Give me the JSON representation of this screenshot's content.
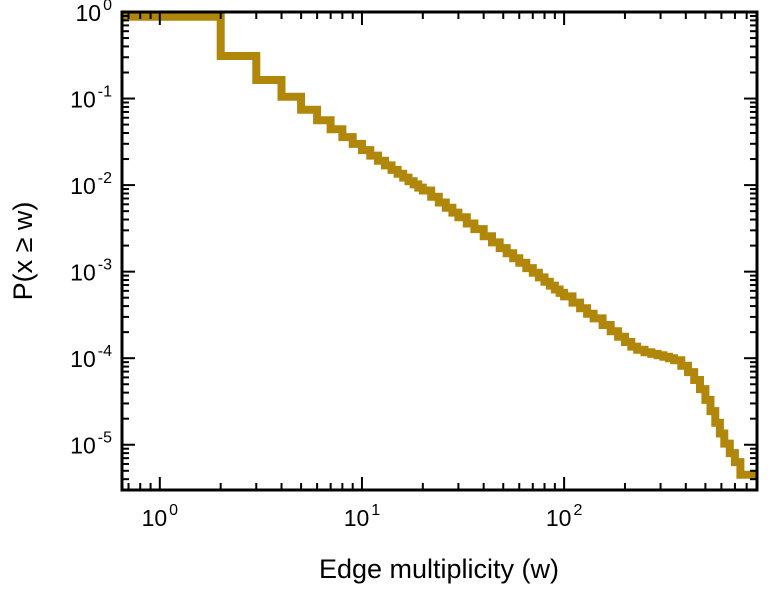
{
  "colors": {
    "line": "#B1870B",
    "axis": "#000000",
    "background": "#FFFFFF"
  },
  "chart_data": {
    "type": "line",
    "subtype": "ccdf-step",
    "title": "",
    "xlabel": "Edge multiplicity (w)",
    "ylabel": "P(x ≥ w)",
    "x_scale": "log",
    "y_scale": "log",
    "grid": false,
    "legend": null,
    "xlim": [
      0.65,
      900
    ],
    "ylim": [
      3e-06,
      1.0
    ],
    "tick_base": "10",
    "x_major_ticks": [
      {
        "value": 1,
        "exp": "0"
      },
      {
        "value": 10,
        "exp": "1"
      },
      {
        "value": 100,
        "exp": "2"
      }
    ],
    "y_major_ticks": [
      {
        "value": 1,
        "exp": "0"
      },
      {
        "value": 0.1,
        "exp": "-1"
      },
      {
        "value": 0.01,
        "exp": "-2"
      },
      {
        "value": 0.001,
        "exp": "-3"
      },
      {
        "value": 0.0001,
        "exp": "-4"
      },
      {
        "value": 1e-05,
        "exp": "-5"
      }
    ],
    "points": [
      [
        1,
        0.88
      ],
      [
        2,
        0.31
      ],
      [
        3,
        0.164
      ],
      [
        4,
        0.105
      ],
      [
        5,
        0.0743
      ],
      [
        6,
        0.0561
      ],
      [
        7,
        0.0442
      ],
      [
        8,
        0.0359
      ],
      [
        9,
        0.0299
      ],
      [
        10,
        0.0254
      ],
      [
        11,
        0.0219
      ],
      [
        12,
        0.0191
      ],
      [
        13,
        0.0169
      ],
      [
        14,
        0.015
      ],
      [
        15,
        0.0135
      ],
      [
        16,
        0.0122
      ],
      [
        17,
        0.0111
      ],
      [
        18,
        0.0102
      ],
      [
        19,
        0.00935
      ],
      [
        20,
        0.00866
      ],
      [
        22,
        0.00733
      ],
      [
        24,
        0.0063
      ],
      [
        26,
        0.00547
      ],
      [
        28,
        0.00481
      ],
      [
        30,
        0.00426
      ],
      [
        33,
        0.0036
      ],
      [
        36,
        0.0031
      ],
      [
        40,
        0.00257
      ],
      [
        44,
        0.00218
      ],
      [
        48,
        0.00187
      ],
      [
        52,
        0.00163
      ],
      [
        56,
        0.00143
      ],
      [
        60,
        0.00127
      ],
      [
        65,
        0.0011
      ],
      [
        70,
        0.000969
      ],
      [
        75,
        0.000859
      ],
      [
        80,
        0.000766
      ],
      [
        85,
        0.000689
      ],
      [
        90,
        0.000622
      ],
      [
        95,
        0.000568
      ],
      [
        100,
        0.000518
      ],
      [
        110,
        0.000439
      ],
      [
        120,
        0.000377
      ],
      [
        130,
        0.000327
      ],
      [
        140,
        0.000288
      ],
      [
        155,
        0.000242
      ],
      [
        170,
        0.000205
      ],
      [
        185,
        0.000177
      ],
      [
        200,
        0.000154
      ],
      [
        215,
        0.000136
      ],
      [
        230,
        0.000125
      ],
      [
        250,
        0.000117
      ],
      [
        270,
        0.000112
      ],
      [
        290,
        0.000108
      ],
      [
        310,
        0.000104
      ],
      [
        330,
        0.0001
      ],
      [
        350,
        9.45e-05
      ],
      [
        380,
        8.2e-05
      ],
      [
        410,
        6.9e-05
      ],
      [
        440,
        5.6e-05
      ],
      [
        470,
        4.4e-05
      ],
      [
        500,
        3.3e-05
      ],
      [
        530,
        2.45e-05
      ],
      [
        560,
        1.8e-05
      ],
      [
        590,
        1.35e-05
      ],
      [
        620,
        1.03e-05
      ],
      [
        660,
        8e-06
      ],
      [
        700,
        6.3e-06
      ],
      [
        745,
        4.5e-06
      ]
    ]
  }
}
